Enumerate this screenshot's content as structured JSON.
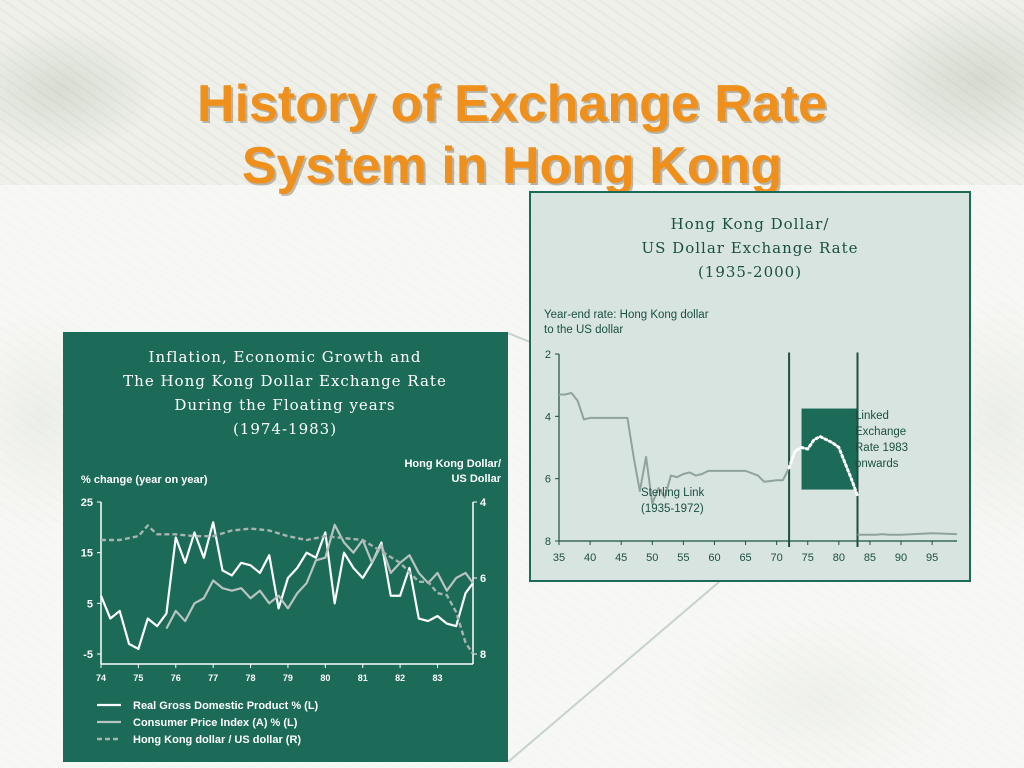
{
  "slide": {
    "title_line1": "History of Exchange Rate",
    "title_line2": "System in Hong Kong"
  },
  "colors": {
    "title": "#f0901c",
    "left_panel_bg": "#1b6b58",
    "right_panel_bg": "#d8e4e0",
    "right_panel_green": "#1b6b58"
  },
  "chart_data": [
    {
      "type": "line",
      "title": [
        "Inflation, Economic Growth and",
        "The Hong Kong Dollar Exchange Rate",
        "During the Floating years",
        "(1974-1983)"
      ],
      "ylabel_left": "% change (year on year)",
      "ylabel_right": [
        "Hong Kong Dollar/",
        "US Dollar"
      ],
      "ylim_left": [
        -5,
        25
      ],
      "yticks_left": [
        "25",
        "15",
        "5",
        "-5"
      ],
      "ylim_right": [
        4,
        8
      ],
      "yticks_right": [
        "4",
        "6",
        "8"
      ],
      "xlim": [
        1974,
        1983.95
      ],
      "xticks": [
        "74",
        "75",
        "76",
        "77",
        "78",
        "79",
        "80",
        "81",
        "82",
        "83"
      ],
      "legend": [
        "Real Gross Domestic Product % (L)",
        "Consumer Price Index (A) % (L)",
        "Hong Kong dollar / US dollar (R)"
      ],
      "legend_position": "bottom",
      "series": [
        {
          "name": "Real Gross Domestic Product % (L)",
          "axis": "left",
          "style": "solid-white",
          "x": [
            1974.0,
            1974.25,
            1974.5,
            1974.75,
            1975.0,
            1975.25,
            1975.5,
            1975.75,
            1976.0,
            1976.25,
            1976.5,
            1976.75,
            1977.0,
            1977.25,
            1977.5,
            1977.75,
            1978.0,
            1978.25,
            1978.5,
            1978.75,
            1979.0,
            1979.25,
            1979.5,
            1979.75,
            1980.0,
            1980.25,
            1980.5,
            1980.75,
            1981.0,
            1981.25,
            1981.5,
            1981.75,
            1982.0,
            1982.25,
            1982.5,
            1982.75,
            1983.0,
            1983.25,
            1983.5,
            1983.75,
            1983.95
          ],
          "y": [
            6.5,
            2.0,
            3.5,
            -3.0,
            -4.0,
            2.0,
            0.5,
            3.0,
            18.0,
            13.0,
            19.0,
            14.0,
            21.0,
            11.5,
            10.5,
            13.0,
            12.5,
            11.0,
            14.5,
            4.0,
            10.0,
            12.0,
            15.0,
            14.0,
            19.0,
            5.0,
            15.0,
            12.0,
            10.0,
            13.0,
            17.0,
            6.5,
            6.5,
            12.0,
            2.0,
            1.5,
            2.5,
            1.0,
            0.5,
            7.0,
            9.0
          ]
        },
        {
          "name": "Consumer Price Index (A) % (L)",
          "axis": "left",
          "style": "solid-lightgray",
          "x": [
            1975.75,
            1976.0,
            1976.25,
            1976.5,
            1976.75,
            1977.0,
            1977.25,
            1977.5,
            1977.75,
            1978.0,
            1978.25,
            1978.5,
            1978.75,
            1979.0,
            1979.25,
            1979.5,
            1979.75,
            1980.0,
            1980.25,
            1980.5,
            1980.75,
            1981.0,
            1981.25,
            1981.5,
            1981.75,
            1982.0,
            1982.25,
            1982.5,
            1982.75,
            1983.0,
            1983.25,
            1983.5,
            1983.75,
            1983.95
          ],
          "y": [
            0.0,
            3.5,
            1.5,
            5.0,
            6.0,
            9.5,
            8.0,
            7.5,
            8.0,
            6.0,
            7.5,
            5.0,
            6.5,
            4.0,
            7.0,
            9.0,
            13.5,
            14.0,
            20.5,
            17.0,
            15.0,
            17.5,
            13.0,
            16.5,
            11.0,
            13.0,
            14.5,
            11.0,
            9.0,
            11.0,
            7.5,
            10.0,
            11.0,
            9.0
          ]
        },
        {
          "name": "Hong Kong dollar / US dollar (R)",
          "axis": "right",
          "style": "dashed-gray",
          "x": [
            1974.0,
            1974.5,
            1975.0,
            1975.25,
            1975.5,
            1976.0,
            1976.5,
            1977.0,
            1977.5,
            1978.0,
            1978.5,
            1979.0,
            1979.5,
            1980.0,
            1980.5,
            1981.0,
            1981.5,
            1982.0,
            1982.25,
            1982.5,
            1982.75,
            1983.0,
            1983.25,
            1983.5,
            1983.75,
            1983.95
          ],
          "y": [
            5.0,
            5.0,
            4.9,
            4.62,
            4.85,
            4.85,
            4.9,
            4.9,
            4.75,
            4.7,
            4.75,
            4.9,
            5.0,
            4.9,
            4.95,
            5.0,
            5.3,
            5.6,
            5.85,
            6.1,
            6.1,
            6.4,
            6.45,
            6.9,
            7.7,
            8.0
          ]
        }
      ]
    },
    {
      "type": "line",
      "title": [
        "Hong Kong Dollar/",
        "US Dollar Exchange Rate",
        "(1935-2000)"
      ],
      "ylabel": [
        "Year-end rate: Hong Kong dollar",
        "to the US dollar"
      ],
      "ylim": [
        2,
        8
      ],
      "inverted_y": true,
      "yticks": [
        "2",
        "4",
        "6",
        "8"
      ],
      "xlim": [
        1935,
        1999
      ],
      "xticks": [
        "35",
        "40",
        "45",
        "50",
        "55",
        "60",
        "65",
        "70",
        "75",
        "80",
        "85",
        "90",
        "95"
      ],
      "annotations": {
        "sterling": [
          "Sterling Link",
          "(1935-1972)"
        ],
        "linked": [
          "Linked",
          "Exchange",
          "Rate 1983",
          "onwards"
        ]
      },
      "period_markers": [
        1972,
        1983
      ],
      "series": [
        {
          "name": "",
          "style": "solid",
          "x": [
            1935,
            1936,
            1937,
            1938,
            1939,
            1940,
            1941,
            1942,
            1943,
            1944,
            1945,
            1946,
            1947,
            1948,
            1949,
            1950,
            1951,
            1952,
            1953,
            1954,
            1955,
            1956,
            1957,
            1958,
            1959,
            1960,
            1965,
            1967,
            1968,
            1970,
            1971,
            1972
          ],
          "y": [
            3.3,
            3.3,
            3.25,
            3.5,
            4.1,
            4.05,
            4.05,
            4.05,
            4.05,
            4.05,
            4.05,
            4.05,
            5.3,
            6.4,
            5.3,
            6.8,
            6.3,
            6.6,
            5.9,
            5.95,
            5.85,
            5.8,
            5.9,
            5.85,
            5.75,
            5.75,
            5.75,
            5.9,
            6.1,
            6.05,
            6.05,
            5.65
          ]
        },
        {
          "name": "",
          "style": "dotted-white",
          "x": [
            1972,
            1973,
            1974,
            1975,
            1976,
            1977,
            1978,
            1979,
            1980,
            1981,
            1982,
            1983
          ],
          "y": [
            5.65,
            5.1,
            5.0,
            5.05,
            4.75,
            4.65,
            4.75,
            4.85,
            5.0,
            5.5,
            6.0,
            6.55
          ]
        },
        {
          "name": "",
          "style": "solid",
          "x": [
            1983,
            1984,
            1985,
            1986,
            1987,
            1988,
            1990,
            1992,
            1995,
            1999
          ],
          "y": [
            7.8,
            7.8,
            7.8,
            7.8,
            7.78,
            7.8,
            7.8,
            7.78,
            7.75,
            7.78
          ]
        }
      ]
    }
  ]
}
